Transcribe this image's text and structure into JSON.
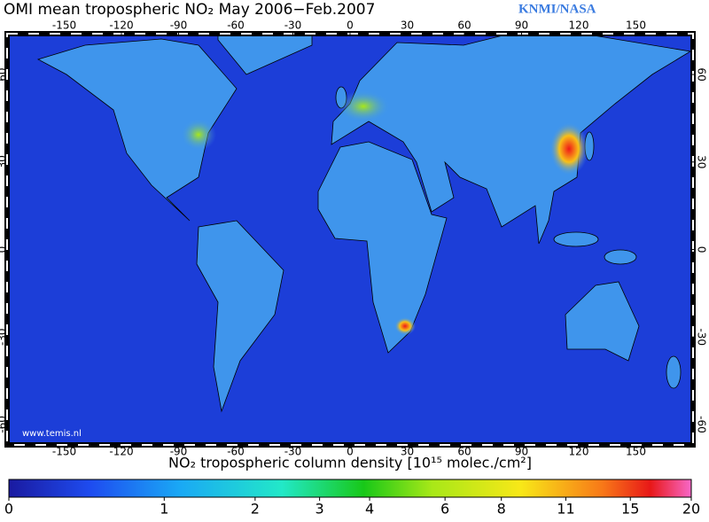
{
  "header": {
    "title": "OMI mean tropospheric NO₂  May 2006−Feb.2007",
    "credit": "KNMI/NASA"
  },
  "map": {
    "lon_ticks": [
      -150,
      -120,
      -90,
      -60,
      -30,
      0,
      30,
      60,
      90,
      120,
      150
    ],
    "lat_ticks": [
      -60,
      -30,
      0,
      30,
      60
    ],
    "lon_range": [
      -180,
      180
    ],
    "lat_range": [
      -67,
      74
    ],
    "watermark": "www.temis.nl"
  },
  "colorbar": {
    "label": "NO₂ tropospheric column density [10¹⁵ molec./cm²]",
    "range": [
      0,
      20
    ],
    "ticks": [
      0,
      1,
      2,
      3,
      4,
      6,
      8,
      11,
      15,
      20
    ]
  }
}
